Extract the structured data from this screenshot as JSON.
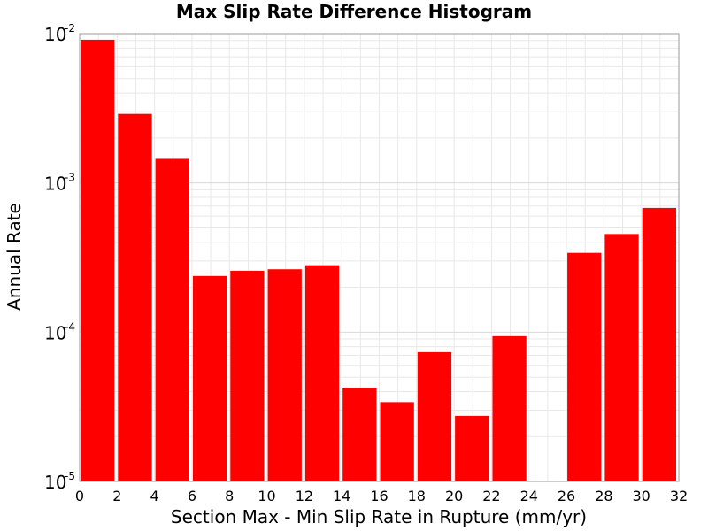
{
  "chart_data": {
    "type": "bar",
    "title": "Max Slip Rate Difference Histogram",
    "xlabel": "Section Max - Min Slip Rate in Rupture (mm/yr)",
    "ylabel": "Annual Rate",
    "y_scale": "log",
    "xlim": [
      0,
      32
    ],
    "ylim": [
      1e-05,
      0.01
    ],
    "bin_width": 2,
    "x_ticks": [
      "0",
      "2",
      "4",
      "6",
      "8",
      "10",
      "12",
      "14",
      "16",
      "18",
      "20",
      "22",
      "24",
      "26",
      "28",
      "30",
      "32"
    ],
    "y_ticks": [
      {
        "base": "10",
        "exp": "-5",
        "value": 1e-05
      },
      {
        "base": "10",
        "exp": "-4",
        "value": 0.0001
      },
      {
        "base": "10",
        "exp": "-3",
        "value": 0.001
      },
      {
        "base": "10",
        "exp": "-2",
        "value": 0.01
      }
    ],
    "grid": true,
    "bar_color": "#ff0000",
    "grid_color": "#e8e8e8",
    "bins": [
      {
        "x": 1,
        "value": 0.0091
      },
      {
        "x": 3,
        "value": 0.0029
      },
      {
        "x": 5,
        "value": 0.00145
      },
      {
        "x": 7,
        "value": 0.000238
      },
      {
        "x": 9,
        "value": 0.000258
      },
      {
        "x": 11,
        "value": 0.000264
      },
      {
        "x": 13,
        "value": 0.000281
      },
      {
        "x": 15,
        "value": 4.25e-05
      },
      {
        "x": 17,
        "value": 3.4e-05
      },
      {
        "x": 19,
        "value": 7.35e-05
      },
      {
        "x": 21,
        "value": 2.75e-05
      },
      {
        "x": 23,
        "value": 9.4e-05
      },
      {
        "x": 25,
        "value": 0
      },
      {
        "x": 27,
        "value": 0.00034
      },
      {
        "x": 29,
        "value": 0.000455
      },
      {
        "x": 31,
        "value": 0.00068
      }
    ]
  }
}
